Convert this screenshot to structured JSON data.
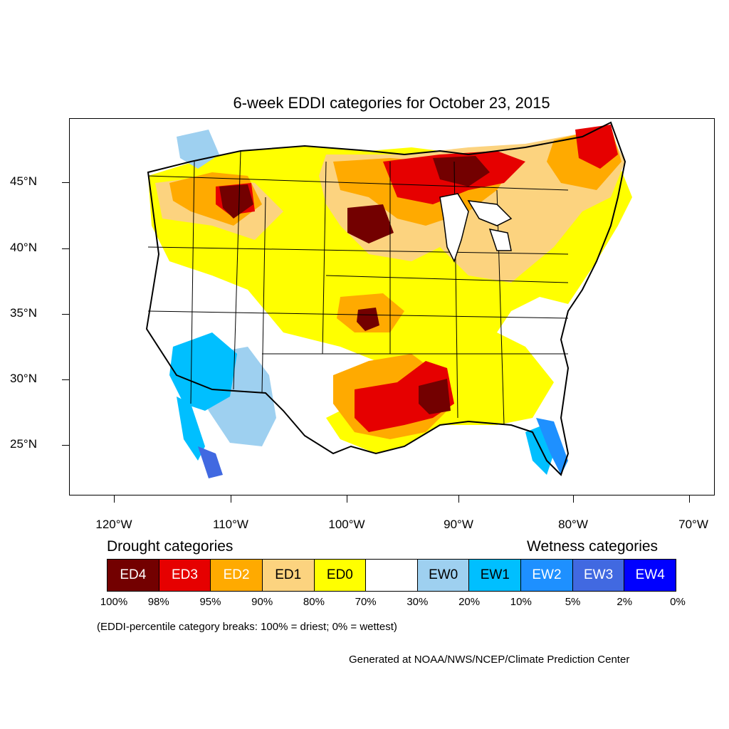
{
  "title": "6-week EDDI categories for October 23, 2015",
  "axes": {
    "lat_labels": [
      "45°N",
      "40°N",
      "35°N",
      "30°N",
      "25°N"
    ],
    "lon_labels": [
      "120°W",
      "110°W",
      "100°W",
      "90°W",
      "80°W",
      "70°W"
    ]
  },
  "legend": {
    "drought_heading": "Drought categories",
    "wetness_heading": "Wetness categories",
    "categories": [
      {
        "label": "ED4",
        "color": "#730000",
        "text_color": "#ffffff"
      },
      {
        "label": "ED3",
        "color": "#e60000",
        "text_color": "#ffffff"
      },
      {
        "label": "ED2",
        "color": "#ffaa00",
        "text_color": "#ffffff"
      },
      {
        "label": "ED1",
        "color": "#fcd37f",
        "text_color": "#000000"
      },
      {
        "label": "ED0",
        "color": "#ffff00",
        "text_color": "#000000"
      },
      {
        "label": "",
        "color": "#ffffff",
        "text_color": "#000000"
      },
      {
        "label": "EW0",
        "color": "#9ed0f0",
        "text_color": "#000000"
      },
      {
        "label": "EW1",
        "color": "#00bfff",
        "text_color": "#000000"
      },
      {
        "label": "EW2",
        "color": "#1e90ff",
        "text_color": "#ffffff"
      },
      {
        "label": "EW3",
        "color": "#4169e1",
        "text_color": "#ffffff"
      },
      {
        "label": "EW4",
        "color": "#0000ff",
        "text_color": "#ffffff"
      }
    ],
    "percentiles": [
      "100%",
      "98%",
      "95%",
      "90%",
      "80%",
      "70%",
      "30%",
      "20%",
      "10%",
      "5%",
      "2%",
      "0%"
    ]
  },
  "note": "(EDDI-percentile category breaks: 100% = driest; 0% = wettest)",
  "credit": "Generated at NOAA/NWS/NCEP/Climate Prediction Center"
}
